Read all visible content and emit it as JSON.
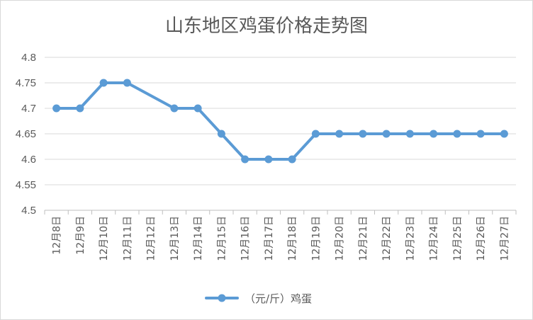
{
  "chart_data": {
    "type": "line",
    "title": "山东地区鸡蛋价格走势图",
    "categories": [
      "12月8日",
      "12月9日",
      "12月10日",
      "12月11日",
      "12月12日",
      "12月13日",
      "12月14日",
      "12月15日",
      "12月16日",
      "12月17日",
      "12月18日",
      "12月19日",
      "12月20日",
      "12月21日",
      "12月22日",
      "12月23日",
      "12月24日",
      "12月25日",
      "12月26日",
      "12月27日"
    ],
    "series": [
      {
        "name": "（元/斤）鸡蛋",
        "values": [
          4.7,
          4.7,
          4.75,
          4.75,
          null,
          4.7,
          4.7,
          4.65,
          4.6,
          4.6,
          4.6,
          4.65,
          4.65,
          4.65,
          4.65,
          4.65,
          4.65,
          4.65,
          4.65,
          4.65
        ],
        "color": "#5b9bd5"
      }
    ],
    "yticks": [
      "4.5",
      "4.55",
      "4.6",
      "4.65",
      "4.7",
      "4.75",
      "4.8"
    ],
    "ylim": [
      4.5,
      4.8
    ],
    "ystep": 0.05,
    "grid": true,
    "legend_position": "bottom",
    "xlabel": "",
    "ylabel": ""
  }
}
